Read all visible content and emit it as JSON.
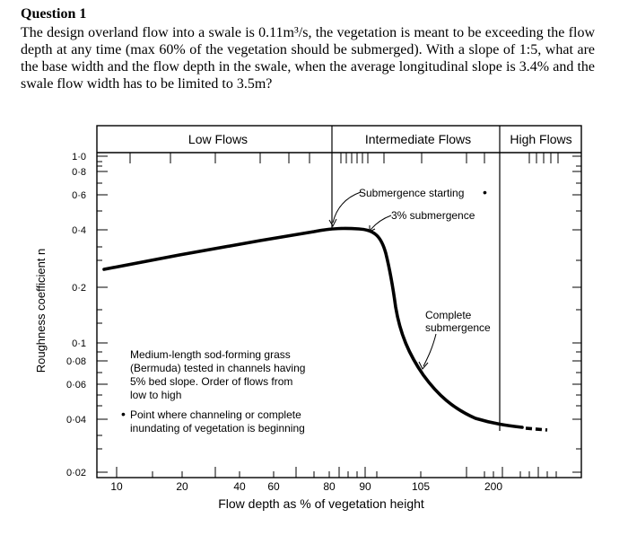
{
  "question": {
    "heading": "Question 1",
    "body": "The design overland flow into a swale is 0.11m³/s, the vegetation is meant to be exceeding the flow depth at any time (max 60% of the vegetation should be submerged). With a slope of 1:5, what are the base width and the flow depth in the swale, when the average longitudinal slope is 3.4% and the swale flow width has to be limited to 3.5m?"
  },
  "figure": {
    "regions": [
      "Low Flows",
      "Intermediate Flows",
      "High Flows"
    ],
    "annotations": {
      "submergence_starting": "Submergence starting",
      "three_pct": "3% submergence",
      "complete_line1": "Complete",
      "complete_line2": "submergence"
    },
    "caption": [
      "Medium-length sod-forming grass",
      "(Bermuda) tested in channels having",
      "5% bed slope. Order of flows from",
      "low to high"
    ],
    "point_note": [
      "Point where channeling or complete",
      "inundating of vegetation is beginning"
    ],
    "point_marker": "•"
  },
  "chart_data": {
    "type": "line",
    "xlabel": "Flow depth as % of vegetation height",
    "ylabel": "Roughness coefficient n",
    "x_tick_labels": [
      "10",
      "20",
      "40",
      "60",
      "80",
      "90",
      "105",
      "200"
    ],
    "y_tick_labels": [
      "1·0",
      "0·8",
      "0·6",
      "0·4",
      "0·2",
      "0·1",
      "0·08",
      "0·06",
      "0·04",
      "0·02"
    ],
    "ylim": [
      0.02,
      1.0
    ],
    "y_scale": "log",
    "series": [
      {
        "x": [
          10,
          20,
          40,
          60,
          80,
          90,
          95,
          100,
          105,
          115,
          150,
          200,
          230
        ],
        "y": [
          0.28,
          0.32,
          0.355,
          0.38,
          0.4,
          0.4,
          0.38,
          0.25,
          0.08,
          0.05,
          0.04,
          0.037,
          0.035
        ]
      }
    ]
  },
  "colors": {
    "ink": "#000000",
    "background": "#ffffff"
  }
}
